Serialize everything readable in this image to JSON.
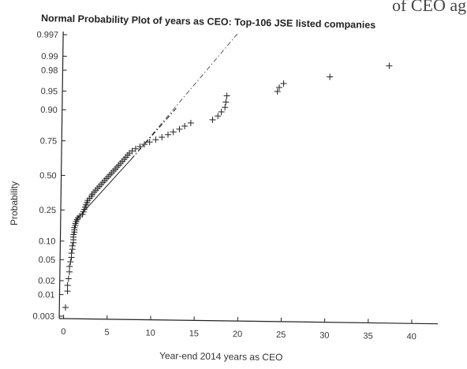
{
  "header_fragment": "of CEO age a",
  "chart_data": {
    "type": "scatter",
    "title": "Normal Probability Plot of years as CEO: Top-106 JSE listed companies",
    "xlabel": "Year-end 2014 years as CEO",
    "ylabel": "Probability",
    "xlim": [
      -0.5,
      43
    ],
    "xticks": [
      "0",
      "5",
      "10",
      "15",
      "20",
      "25",
      "30",
      "35",
      "40"
    ],
    "yticks": [
      "0.003",
      "0.01",
      "0.02",
      "0.05",
      "0.10",
      "0.25",
      "0.50",
      "0.75",
      "0.90",
      "0.95",
      "0.98",
      "0.99",
      "0.997"
    ],
    "ytick_values": [
      0.003,
      0.01,
      0.02,
      0.05,
      0.1,
      0.25,
      0.5,
      0.75,
      0.9,
      0.95,
      0.98,
      0.99,
      0.997
    ],
    "grid": false,
    "points": [
      [
        0.2,
        0.005
      ],
      [
        0.4,
        0.012
      ],
      [
        0.4,
        0.016
      ],
      [
        0.5,
        0.022
      ],
      [
        0.6,
        0.03
      ],
      [
        0.6,
        0.038
      ],
      [
        0.7,
        0.046
      ],
      [
        0.8,
        0.055
      ],
      [
        0.8,
        0.065
      ],
      [
        0.9,
        0.075
      ],
      [
        0.9,
        0.085
      ],
      [
        1.0,
        0.095
      ],
      [
        1.0,
        0.105
      ],
      [
        1.0,
        0.115
      ],
      [
        1.0,
        0.125
      ],
      [
        1.1,
        0.135
      ],
      [
        1.1,
        0.145
      ],
      [
        1.1,
        0.155
      ],
      [
        1.2,
        0.165
      ],
      [
        1.2,
        0.175
      ],
      [
        1.3,
        0.185
      ],
      [
        1.4,
        0.195
      ],
      [
        1.5,
        0.205
      ],
      [
        1.7,
        0.215
      ],
      [
        2.0,
        0.225
      ],
      [
        2.1,
        0.24
      ],
      [
        2.2,
        0.255
      ],
      [
        2.3,
        0.27
      ],
      [
        2.4,
        0.285
      ],
      [
        2.5,
        0.3
      ],
      [
        2.6,
        0.315
      ],
      [
        2.8,
        0.33
      ],
      [
        3.0,
        0.345
      ],
      [
        3.1,
        0.36
      ],
      [
        3.3,
        0.375
      ],
      [
        3.5,
        0.39
      ],
      [
        3.7,
        0.405
      ],
      [
        3.9,
        0.42
      ],
      [
        4.1,
        0.435
      ],
      [
        4.3,
        0.45
      ],
      [
        4.5,
        0.465
      ],
      [
        4.7,
        0.48
      ],
      [
        4.9,
        0.495
      ],
      [
        5.1,
        0.51
      ],
      [
        5.3,
        0.525
      ],
      [
        5.5,
        0.54
      ],
      [
        5.7,
        0.555
      ],
      [
        5.9,
        0.57
      ],
      [
        6.1,
        0.585
      ],
      [
        6.3,
        0.6
      ],
      [
        6.5,
        0.615
      ],
      [
        6.7,
        0.63
      ],
      [
        6.9,
        0.645
      ],
      [
        7.1,
        0.66
      ],
      [
        7.3,
        0.675
      ],
      [
        7.6,
        0.69
      ],
      [
        8.0,
        0.705
      ],
      [
        8.5,
        0.72
      ],
      [
        9.0,
        0.735
      ],
      [
        9.6,
        0.75
      ],
      [
        10.3,
        0.765
      ],
      [
        11.0,
        0.78
      ],
      [
        11.7,
        0.795
      ],
      [
        12.3,
        0.81
      ],
      [
        13.0,
        0.825
      ],
      [
        13.6,
        0.84
      ],
      [
        14.3,
        0.855
      ],
      [
        16.8,
        0.87
      ],
      [
        17.4,
        0.885
      ],
      [
        17.8,
        0.9
      ],
      [
        18.2,
        0.915
      ],
      [
        18.3,
        0.93
      ],
      [
        18.4,
        0.945
      ],
      [
        24.2,
        0.955
      ],
      [
        24.4,
        0.962
      ],
      [
        24.9,
        0.968
      ],
      [
        30.2,
        0.977
      ],
      [
        37.0,
        0.987
      ]
    ],
    "reference_lines": [
      "fit",
      "extrapolation"
    ]
  }
}
